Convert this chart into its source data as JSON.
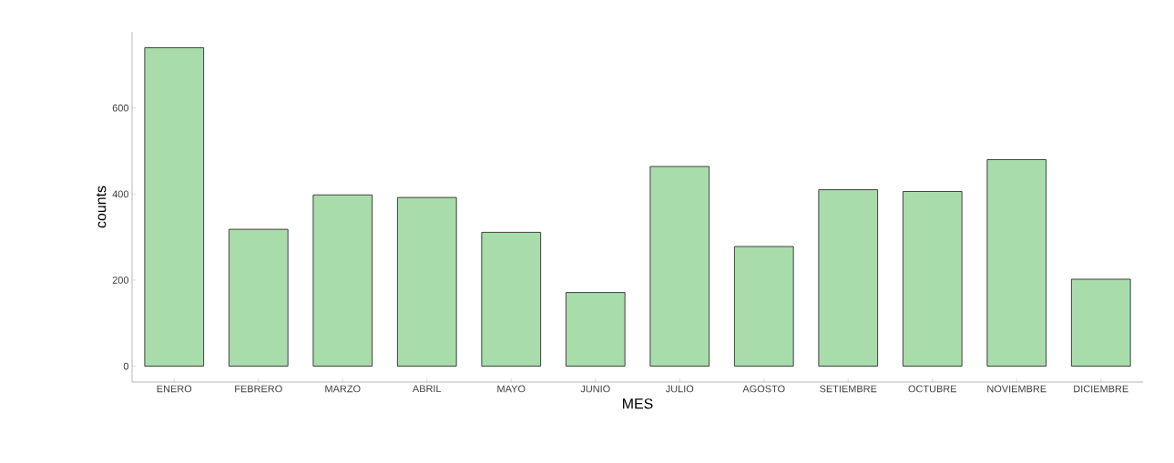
{
  "chart_data": {
    "type": "bar",
    "xlabel": "MES",
    "ylabel": "counts",
    "categories": [
      "ENERO",
      "FEBRERO",
      "MARZO",
      "ABRIL",
      "MAYO",
      "JUNIO",
      "JULIO",
      "AGOSTO",
      "SETIEMBRE",
      "OCTUBRE",
      "NOVIEMBRE",
      "DICIEMBRE"
    ],
    "values": [
      740,
      318,
      398,
      392,
      311,
      171,
      464,
      278,
      410,
      406,
      480,
      202
    ],
    "color": "#a8dcaa",
    "ylim": [
      -37,
      777
    ],
    "yticks": [
      0,
      200,
      400,
      600
    ]
  }
}
